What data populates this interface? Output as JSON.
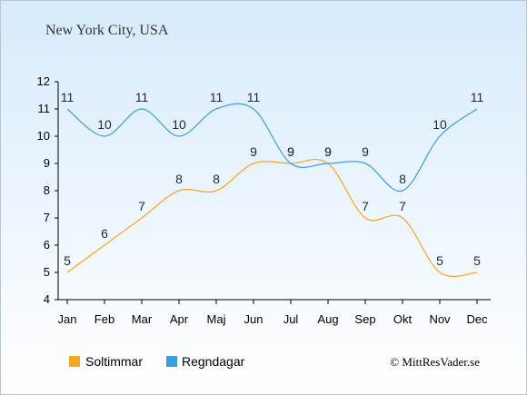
{
  "title": "New York City, USA",
  "credit": "© MittResVader.se",
  "colors": {
    "background_top": "#d7ebfb",
    "background_bottom": "#ffffff",
    "sun": "#f5a623",
    "rain": "#3d9ce0",
    "axis": "#000000",
    "text": "#333333",
    "label": "#1a2a44"
  },
  "chart_data": {
    "type": "line",
    "title": "New York City, USA",
    "xlabel": "",
    "ylabel": "",
    "categories": [
      "Jan",
      "Feb",
      "Mar",
      "Apr",
      "Maj",
      "Jun",
      "Jul",
      "Aug",
      "Sep",
      "Okt",
      "Nov",
      "Dec"
    ],
    "ylim": [
      4,
      12
    ],
    "yticks": [
      4,
      5,
      6,
      7,
      8,
      9,
      10,
      11,
      12
    ],
    "grid": false,
    "legend": "bottom",
    "series": [
      {
        "name": "Soltimmar",
        "color": "#f5a623",
        "values": [
          5,
          6,
          7,
          8,
          8,
          9,
          9,
          9,
          7,
          7,
          5,
          5
        ]
      },
      {
        "name": "Regndagar",
        "color": "#3d9ce0",
        "values": [
          11,
          10,
          11,
          10,
          11,
          11,
          9,
          9,
          9,
          8,
          10,
          11
        ]
      }
    ]
  }
}
